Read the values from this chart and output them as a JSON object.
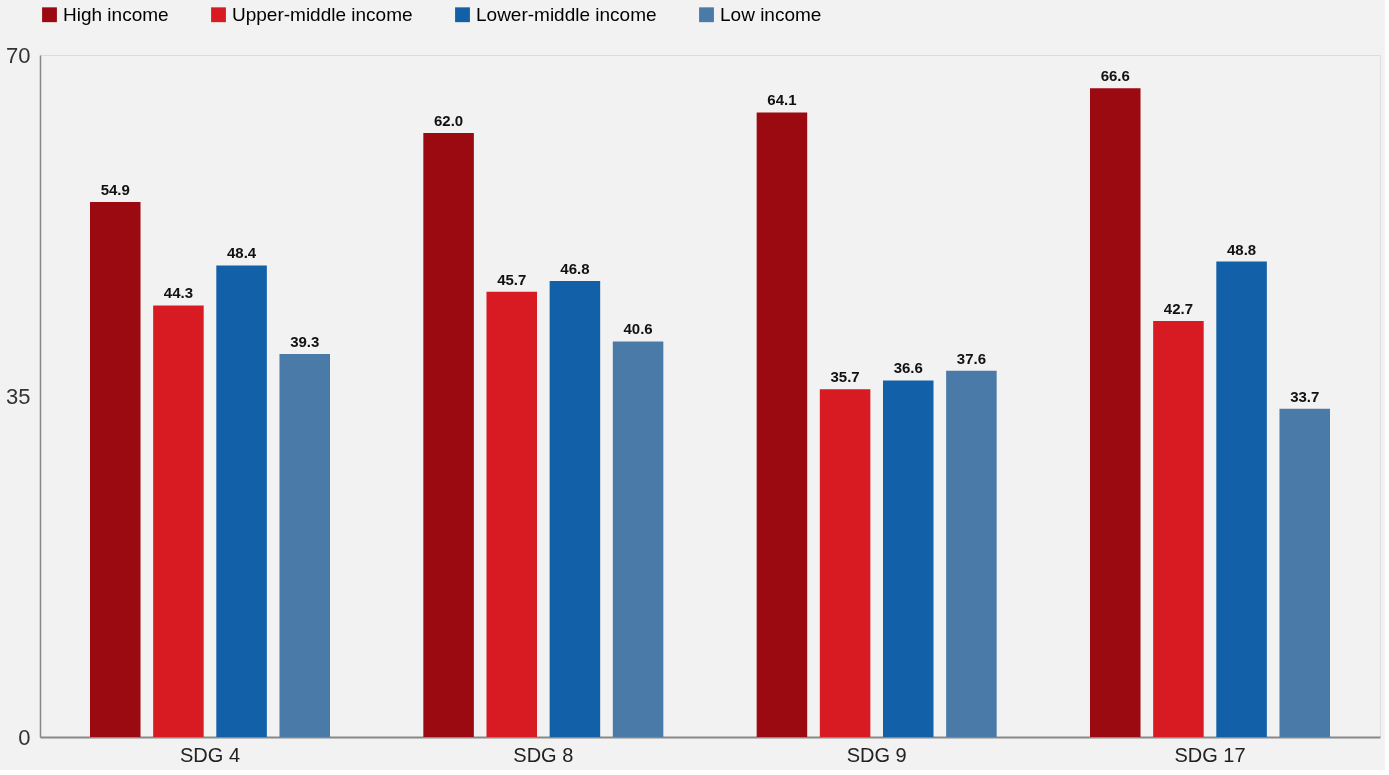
{
  "chart_data": {
    "type": "bar",
    "categories": [
      "SDG 4",
      "SDG 8",
      "SDG 9",
      "SDG 17"
    ],
    "series": [
      {
        "name": "High income",
        "color": "#9b0a10",
        "values": [
          54.9,
          62.0,
          64.1,
          66.6
        ],
        "value_labels": [
          "54.9",
          "62.0",
          "64.1",
          "66.6"
        ]
      },
      {
        "name": "Upper-middle income",
        "color": "#d81b22",
        "values": [
          44.3,
          45.7,
          35.7,
          42.7
        ],
        "value_labels": [
          "44.3",
          "45.7",
          "35.7",
          "42.7"
        ]
      },
      {
        "name": "Lower-middle income",
        "color": "#1160a8",
        "values": [
          48.4,
          46.8,
          36.6,
          48.8
        ],
        "value_labels": [
          "48.4",
          "46.8",
          "36.6",
          "48.8"
        ]
      },
      {
        "name": "Low income",
        "color": "#4a7aa8",
        "values": [
          39.3,
          40.6,
          37.6,
          33.7
        ],
        "value_labels": [
          "39.3",
          "40.6",
          "37.6",
          "33.7"
        ]
      }
    ],
    "ylim": [
      0,
      70
    ],
    "yticks": [
      0,
      35,
      70
    ],
    "grid": false,
    "legend": "top left"
  }
}
